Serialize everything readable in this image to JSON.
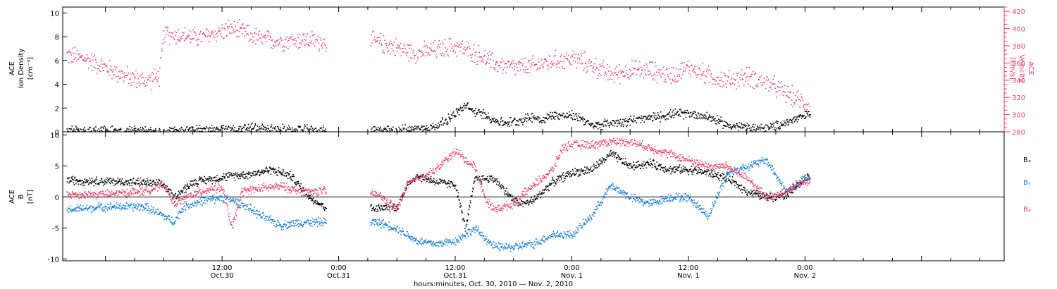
{
  "x_axis": {
    "title": "hours:minutes, Oct. 30, 2010 — Nov. 2, 2010",
    "range_hours": [
      -4.4,
      92.5
    ],
    "ticks": [
      {
        "hours": 12,
        "time": "12:00",
        "date": "Oct.30"
      },
      {
        "hours": 24,
        "time": "0:00",
        "date": "Oct.31"
      },
      {
        "hours": 36,
        "time": "12:00",
        "date": "Oct.31"
      },
      {
        "hours": 48,
        "time": "0:00",
        "date": "Nov. 1"
      },
      {
        "hours": 60,
        "time": "12:00",
        "date": "Nov. 1"
      },
      {
        "hours": 72,
        "time": "0:00",
        "date": "Nov. 2"
      }
    ]
  },
  "colors": {
    "density": "#000000",
    "velocity": "#e8436a",
    "bx": "#000000",
    "by": "#1a7fd4",
    "bz": "#e8436a",
    "axis": "#000000",
    "right_axis": "#e8436a"
  },
  "chart_data": [
    {
      "type": "scatter",
      "ylabel_lines": [
        "ACE",
        "Ion Density",
        "[cm⁻³]"
      ],
      "ylim": [
        0,
        10.5
      ],
      "yticks": [
        "0",
        "2",
        "4",
        "6",
        "8",
        "10"
      ],
      "y2label_lines": [
        "ACE",
        "Velocity",
        "[km/s]"
      ],
      "y2lim": [
        280,
        425
      ],
      "y2ticks": [
        "280",
        "300",
        "320",
        "340",
        "360",
        "380",
        "400",
        "420"
      ],
      "series": [
        {
          "name": "",
          "axis": "left",
          "color_key": "density",
          "anchors": [
            [
              -4,
              0.1
            ],
            [
              0,
              0.1
            ],
            [
              6,
              0.1
            ],
            [
              8,
              0.15
            ],
            [
              9,
              0.2
            ],
            [
              12,
              0.25
            ],
            [
              14,
              0.3
            ],
            [
              15,
              0.4
            ],
            [
              17,
              0.25
            ],
            [
              20,
              0.2
            ],
            [
              22.5,
              0.15
            ],
            [
              28,
              0.15
            ],
            [
              31,
              0.2
            ],
            [
              32,
              0.25
            ],
            [
              34,
              0.5
            ],
            [
              35,
              1.0
            ],
            [
              36,
              1.6
            ],
            [
              37,
              2.2
            ],
            [
              38,
              1.7
            ],
            [
              39,
              1.5
            ],
            [
              40,
              1.0
            ],
            [
              41,
              0.8
            ],
            [
              42,
              0.9
            ],
            [
              43,
              1.1
            ],
            [
              44,
              1.3
            ],
            [
              45,
              1.0
            ],
            [
              46,
              1.5
            ],
            [
              47,
              1.4
            ],
            [
              48,
              1.4
            ],
            [
              49,
              1.2
            ],
            [
              50,
              0.5
            ],
            [
              52,
              0.8
            ],
            [
              54,
              1.0
            ],
            [
              56,
              1.2
            ],
            [
              58,
              1.5
            ],
            [
              60,
              1.6
            ],
            [
              62,
              1.3
            ],
            [
              64,
              0.6
            ],
            [
              66,
              0.4
            ],
            [
              68,
              0.3
            ],
            [
              70,
              0.8
            ],
            [
              72,
              1.4
            ],
            [
              72.5,
              1.6
            ]
          ]
        },
        {
          "name": "",
          "axis": "right",
          "color_key": "velocity",
          "anchors": [
            [
              -4,
              370
            ],
            [
              -2,
              365
            ],
            [
              0,
              355
            ],
            [
              2,
              345
            ],
            [
              4,
              340
            ],
            [
              5.5,
              345
            ],
            [
              6,
              395
            ],
            [
              8,
              392
            ],
            [
              10,
              390
            ],
            [
              11,
              395
            ],
            [
              13,
              400
            ],
            [
              14,
              397
            ],
            [
              16,
              388
            ],
            [
              18,
              386
            ],
            [
              20,
              388
            ],
            [
              22.5,
              385
            ],
            [
              28,
              385
            ],
            [
              30,
              378
            ],
            [
              32,
              372
            ],
            [
              34,
              376
            ],
            [
              36,
              380
            ],
            [
              38,
              372
            ],
            [
              40,
              360
            ],
            [
              42,
              355
            ],
            [
              44,
              357
            ],
            [
              46,
              363
            ],
            [
              48,
              366
            ],
            [
              50,
              358
            ],
            [
              52,
              347
            ],
            [
              54,
              352
            ],
            [
              56,
              352
            ],
            [
              58,
              346
            ],
            [
              60,
              355
            ],
            [
              62,
              346
            ],
            [
              64,
              340
            ],
            [
              66,
              345
            ],
            [
              68,
              338
            ],
            [
              70,
              325
            ],
            [
              72,
              314
            ],
            [
              72.5,
              308
            ]
          ]
        }
      ]
    },
    {
      "type": "scatter",
      "ylabel_lines": [
        "ACE",
        "B",
        "[nT]"
      ],
      "ylim": [
        -10.3,
        10.5
      ],
      "yticks": [
        "-10",
        "-5",
        "0",
        "5",
        "10"
      ],
      "legend": [
        "Bₓ",
        "Bᵧ",
        "Bₔ"
      ],
      "series": [
        {
          "name": "Bₓ",
          "color_key": "bx",
          "anchors": [
            [
              -4,
              2.8
            ],
            [
              0,
              2.6
            ],
            [
              4,
              2.4
            ],
            [
              6,
              2.0
            ],
            [
              7,
              0.0
            ],
            [
              9,
              2.5
            ],
            [
              11,
              3.0
            ],
            [
              13,
              3.5
            ],
            [
              15,
              3.8
            ],
            [
              17,
              4.5
            ],
            [
              19,
              3.5
            ],
            [
              21,
              0.0
            ],
            [
              22.5,
              -1.5
            ],
            [
              28,
              -1.8
            ],
            [
              30,
              -1.5
            ],
            [
              31,
              2.0
            ],
            [
              32,
              3.5
            ],
            [
              34,
              2.5
            ],
            [
              36,
              2.0
            ],
            [
              37,
              -5.0
            ],
            [
              38,
              3.0
            ],
            [
              40,
              3.0
            ],
            [
              42,
              -0.5
            ],
            [
              43,
              -1.0
            ],
            [
              44,
              -0.5
            ],
            [
              46,
              2.5
            ],
            [
              48,
              4.0
            ],
            [
              50,
              4.5
            ],
            [
              52,
              7.0
            ],
            [
              54,
              5.0
            ],
            [
              56,
              5.5
            ],
            [
              58,
              4.5
            ],
            [
              60,
              4.5
            ],
            [
              62,
              4.0
            ],
            [
              64,
              3.0
            ],
            [
              66,
              1.0
            ],
            [
              68,
              0.0
            ],
            [
              70,
              0.5
            ],
            [
              72,
              3.0
            ],
            [
              72.5,
              3.2
            ]
          ]
        },
        {
          "name": "Bᵧ",
          "color_key": "by",
          "anchors": [
            [
              -4,
              -2.0
            ],
            [
              0,
              -1.5
            ],
            [
              4,
              -1.5
            ],
            [
              6,
              -3.0
            ],
            [
              7,
              -4.0
            ],
            [
              8,
              -1.5
            ],
            [
              10,
              -0.5
            ],
            [
              12,
              0.0
            ],
            [
              14,
              -1.0
            ],
            [
              16,
              -3.0
            ],
            [
              18,
              -4.5
            ],
            [
              20,
              -4.0
            ],
            [
              22.5,
              -4.0
            ],
            [
              28,
              -4.0
            ],
            [
              30,
              -5.0
            ],
            [
              31,
              -6.0
            ],
            [
              32,
              -7.0
            ],
            [
              34,
              -7.5
            ],
            [
              36,
              -7.0
            ],
            [
              38,
              -5.0
            ],
            [
              40,
              -8.0
            ],
            [
              42,
              -8.0
            ],
            [
              44,
              -7.5
            ],
            [
              46,
              -6.0
            ],
            [
              48,
              -6.0
            ],
            [
              50,
              -3.0
            ],
            [
              52,
              2.0
            ],
            [
              54,
              0.0
            ],
            [
              56,
              -1.0
            ],
            [
              58,
              0.0
            ],
            [
              60,
              0.0
            ],
            [
              62,
              -3.0
            ],
            [
              64,
              4.0
            ],
            [
              66,
              5.0
            ],
            [
              68,
              6.0
            ],
            [
              70,
              1.0
            ],
            [
              72,
              3.0
            ],
            [
              72.5,
              3.0
            ]
          ]
        },
        {
          "name": "Bₔ",
          "color_key": "bz",
          "anchors": [
            [
              -4,
              0.5
            ],
            [
              0,
              0.5
            ],
            [
              4,
              1.0
            ],
            [
              6,
              2.0
            ],
            [
              7,
              -1.0
            ],
            [
              9,
              0.5
            ],
            [
              11,
              1.5
            ],
            [
              12,
              1.5
            ],
            [
              13,
              -5.0
            ],
            [
              14,
              1.0
            ],
            [
              16,
              1.5
            ],
            [
              18,
              1.8
            ],
            [
              20,
              1.0
            ],
            [
              22.5,
              1.0
            ],
            [
              28,
              0.5
            ],
            [
              30,
              -2.0
            ],
            [
              31,
              2.0
            ],
            [
              32,
              3.0
            ],
            [
              34,
              4.5
            ],
            [
              36,
              7.5
            ],
            [
              37,
              6.0
            ],
            [
              38,
              5.0
            ],
            [
              39,
              0.0
            ],
            [
              40,
              -2.0
            ],
            [
              42,
              -1.0
            ],
            [
              44,
              2.0
            ],
            [
              46,
              4.5
            ],
            [
              47,
              8.0
            ],
            [
              48,
              8.5
            ],
            [
              50,
              8.5
            ],
            [
              52,
              9.0
            ],
            [
              54,
              9.0
            ],
            [
              56,
              8.0
            ],
            [
              58,
              7.0
            ],
            [
              60,
              6.0
            ],
            [
              62,
              5.0
            ],
            [
              64,
              5.0
            ],
            [
              66,
              3.0
            ],
            [
              68,
              0.0
            ],
            [
              70,
              1.0
            ],
            [
              72,
              2.5
            ],
            [
              72.5,
              2.5
            ]
          ]
        }
      ]
    }
  ]
}
